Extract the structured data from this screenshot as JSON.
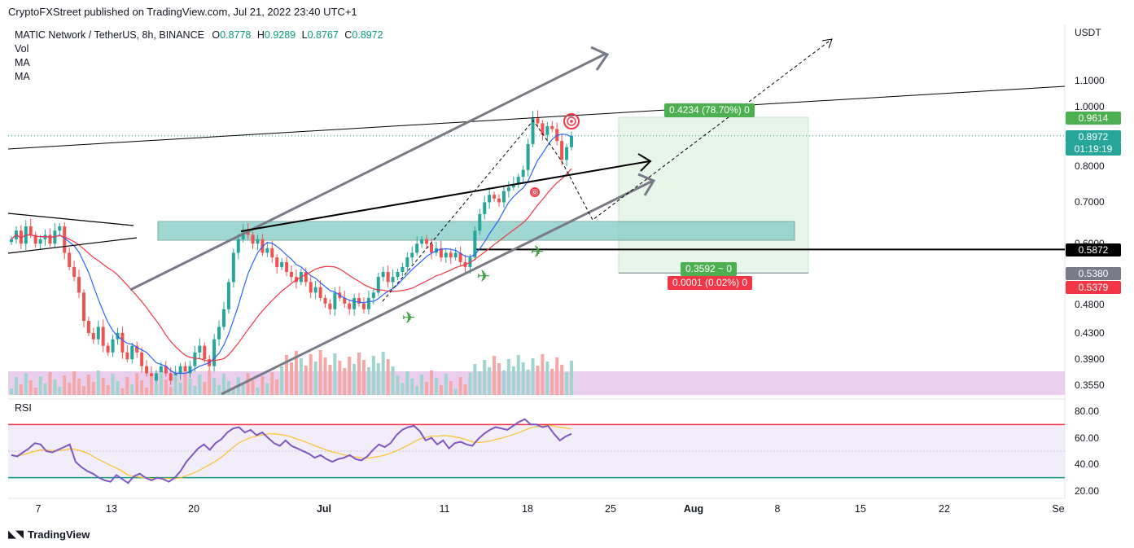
{
  "header": {
    "published": "CryptoFXStreet published on TradingView.com, Jul 21, 2022 23:40 UTC+1"
  },
  "legend": {
    "symbol": "MATIC Network / TetherUS, 8h, BINANCE",
    "o_label": "O",
    "o_value": "0.8778",
    "h_label": "H",
    "h_value": "0.9289",
    "l_label": "L",
    "l_value": "0.8767",
    "c_label": "C",
    "c_value": "0.8972",
    "indicators": [
      "Vol",
      "MA",
      "MA"
    ]
  },
  "rsi": {
    "title": "RSI",
    "upper": 70,
    "lower": 30,
    "ticks": [
      "80.00",
      "60.00",
      "40.00",
      "20.00"
    ]
  },
  "price_axis": {
    "currency": "USDT",
    "ticks": [
      "1.1000",
      "1.0000",
      "0.8000",
      "0.7000",
      "0.6000",
      "0.4800",
      "0.4300",
      "0.3900",
      "0.3550"
    ],
    "tags": [
      {
        "label": "0.9614",
        "color": "#4caf50"
      },
      {
        "label": "0.8972",
        "color": "#26a69a"
      },
      {
        "label": "01:19:19",
        "color": "#26a69a"
      },
      {
        "label": "0.5872",
        "color": "#000000"
      },
      {
        "label": "0.5380",
        "color": "#787b86"
      },
      {
        "label": "0.5379",
        "color": "#f23645"
      }
    ]
  },
  "time_axis": {
    "ticks": [
      "7",
      "13",
      "20",
      "Jul",
      "11",
      "18",
      "25",
      "Aug",
      "8",
      "15",
      "22",
      "Se"
    ]
  },
  "position_box": {
    "target_label": "0.4234 (78.70%) 0",
    "entry_label": "0.3592 ~ 0",
    "stop_label": "0.0001 (0.02%) 0"
  },
  "brand": {
    "name": "TradingView",
    "logo": "tradingview-logo"
  },
  "chart_data": {
    "type": "candlestick",
    "symbol": "MATIC Network / TetherUS",
    "timeframe": "8h",
    "exchange": "BINANCE",
    "last": {
      "open": 0.8778,
      "high": 0.9289,
      "low": 0.8767,
      "close": 0.8972
    },
    "ylim": [
      0.32,
      1.16
    ],
    "y_scale": "log",
    "x_ticks": [
      "7",
      "13",
      "20",
      "Jul",
      "11",
      "18",
      "25",
      "Aug",
      "8",
      "15",
      "22",
      "Se"
    ],
    "close_series": [
      0.61,
      0.63,
      0.6,
      0.64,
      0.62,
      0.6,
      0.61,
      0.62,
      0.6,
      0.63,
      0.64,
      0.58,
      0.55,
      0.53,
      0.5,
      0.45,
      0.43,
      0.42,
      0.44,
      0.41,
      0.4,
      0.42,
      0.43,
      0.4,
      0.39,
      0.41,
      0.4,
      0.38,
      0.37,
      0.36,
      0.37,
      0.38,
      0.37,
      0.36,
      0.37,
      0.38,
      0.37,
      0.38,
      0.4,
      0.41,
      0.39,
      0.38,
      0.42,
      0.44,
      0.47,
      0.52,
      0.58,
      0.61,
      0.63,
      0.62,
      0.6,
      0.61,
      0.58,
      0.59,
      0.57,
      0.55,
      0.56,
      0.54,
      0.53,
      0.52,
      0.54,
      0.52,
      0.5,
      0.51,
      0.49,
      0.48,
      0.47,
      0.5,
      0.49,
      0.48,
      0.47,
      0.49,
      0.48,
      0.47,
      0.49,
      0.5,
      0.53,
      0.54,
      0.52,
      0.53,
      0.54,
      0.55,
      0.57,
      0.58,
      0.6,
      0.61,
      0.6,
      0.58,
      0.59,
      0.57,
      0.58,
      0.57,
      0.58,
      0.56,
      0.55,
      0.57,
      0.63,
      0.67,
      0.7,
      0.72,
      0.71,
      0.7,
      0.73,
      0.74,
      0.75,
      0.77,
      0.79,
      0.87,
      0.96,
      0.94,
      0.9,
      0.93,
      0.92,
      0.88,
      0.82,
      0.86,
      0.8972
    ],
    "ma_fast_label": "MA",
    "ma_slow_label": "MA",
    "annotations": {
      "horizontal_level": 0.5872,
      "zone": [
        0.6,
        0.64
      ],
      "position_long": {
        "entry": 0.538,
        "target": 0.9614,
        "stop": 0.5379
      }
    },
    "rsi_series": [
      47,
      46,
      49,
      52,
      56,
      55,
      50,
      49,
      51,
      53,
      55,
      42,
      38,
      35,
      33,
      30,
      28,
      27,
      32,
      29,
      26,
      31,
      33,
      30,
      28,
      30,
      29,
      27,
      30,
      35,
      42,
      47,
      52,
      55,
      51,
      56,
      59,
      64,
      67,
      68,
      64,
      66,
      62,
      64,
      60,
      56,
      54,
      58,
      54,
      52,
      50,
      48,
      45,
      47,
      44,
      42,
      44,
      45,
      47,
      44,
      43,
      46,
      51,
      55,
      53,
      56,
      62,
      66,
      68,
      69,
      65,
      58,
      60,
      55,
      58,
      52,
      56,
      57,
      55,
      54,
      59,
      63,
      66,
      68,
      67,
      66,
      69,
      72,
      74,
      70,
      70,
      68,
      69,
      63,
      58,
      61,
      63
    ]
  }
}
